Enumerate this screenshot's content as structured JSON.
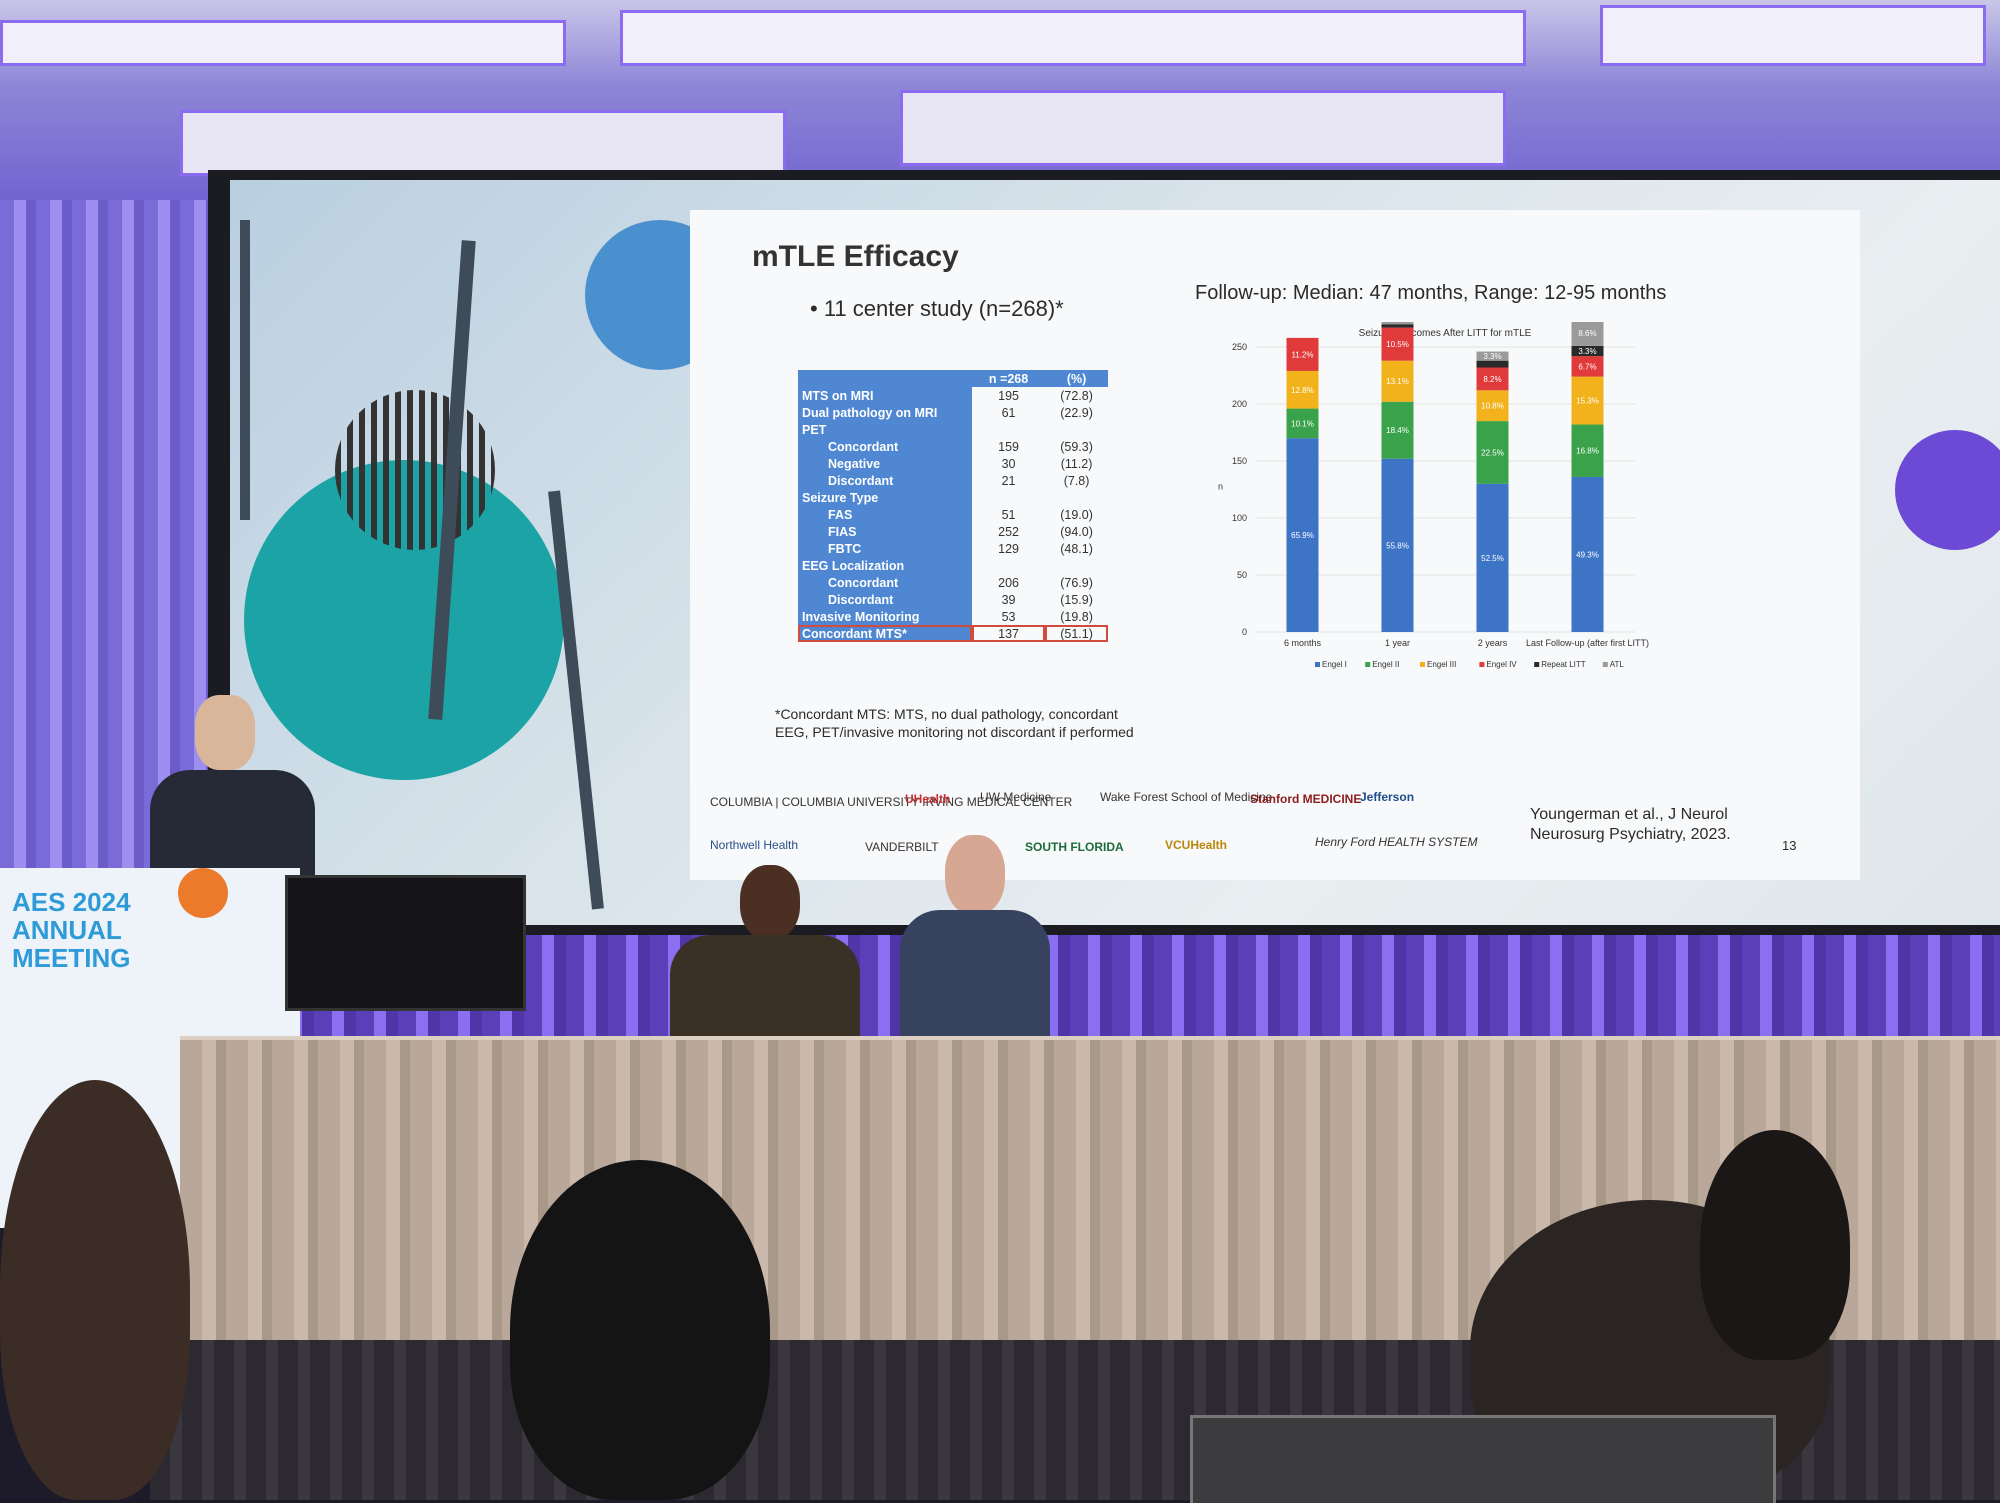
{
  "slide": {
    "title": "mTLE Efficacy",
    "bullet": "• 11 center study (n=268)*",
    "followup": "Follow-up: Median: 47 months, Range: 12-95 months",
    "table": {
      "header": [
        "",
        "n =268",
        "(%)"
      ],
      "rows": [
        {
          "label": "MTS on MRI",
          "n": "195",
          "pct": "(72.8)",
          "sub": false
        },
        {
          "label": "Dual pathology on MRI",
          "n": "61",
          "pct": "(22.9)",
          "sub": false
        },
        {
          "label": "PET",
          "n": "",
          "pct": "",
          "sub": false
        },
        {
          "label": "Concordant",
          "n": "159",
          "pct": "(59.3)",
          "sub": true
        },
        {
          "label": "Negative",
          "n": "30",
          "pct": "(11.2)",
          "sub": true
        },
        {
          "label": "Discordant",
          "n": "21",
          "pct": "(7.8)",
          "sub": true
        },
        {
          "label": "Seizure Type",
          "n": "",
          "pct": "",
          "sub": false
        },
        {
          "label": "FAS",
          "n": "51",
          "pct": "(19.0)",
          "sub": true
        },
        {
          "label": "FIAS",
          "n": "252",
          "pct": "(94.0)",
          "sub": true
        },
        {
          "label": "FBTC",
          "n": "129",
          "pct": "(48.1)",
          "sub": true
        },
        {
          "label": "EEG Localization",
          "n": "",
          "pct": "",
          "sub": false
        },
        {
          "label": "Concordant",
          "n": "206",
          "pct": "(76.9)",
          "sub": true
        },
        {
          "label": "Discordant",
          "n": "39",
          "pct": "(15.9)",
          "sub": true
        },
        {
          "label": "Invasive Monitoring",
          "n": "53",
          "pct": "(19.8)",
          "sub": false
        },
        {
          "label": "Concordant MTS*",
          "n": "137",
          "pct": "(51.1)",
          "sub": false,
          "highlight": true
        }
      ]
    },
    "footnote": "*Concordant MTS: MTS, no dual pathology, concordant EEG, PET/invasive monitoring not discordant if performed",
    "logos": [
      "COLUMBIA | COLUMBIA UNIVERSITY IRVING MEDICAL CENTER",
      "UHealth",
      "UW Medicine",
      "Wake Forest School of Medicine",
      "Stanford MEDICINE",
      "Jefferson",
      "Northwell Health",
      "VANDERBILT",
      "SOUTH FLORIDA",
      "VCUHealth",
      "Henry Ford HEALTH SYSTEM"
    ],
    "citation": "Youngerman et al., J Neurol Neurosurg Psychiatry, 2023.",
    "slide_number": "13"
  },
  "chart_data": {
    "type": "bar",
    "stacked": true,
    "title": "Seizure Outcomes After LITT for mTLE",
    "ylabel": "n",
    "ylim": [
      0,
      250
    ],
    "yticks": [
      0,
      50,
      100,
      150,
      200,
      250
    ],
    "categories": [
      "6 months",
      "1 year",
      "2 years",
      "Last Follow-up (after first LITT)"
    ],
    "series": [
      {
        "name": "Engel I",
        "color": "#3d74c6",
        "values": [
          170,
          152,
          130,
          136
        ],
        "labels": [
          "65.9%",
          "55.8%",
          "52.5%",
          "49.3%"
        ]
      },
      {
        "name": "Engel II",
        "color": "#3aa24a",
        "values": [
          26,
          50,
          55,
          46
        ],
        "labels": [
          "10.1%",
          "18.4%",
          "22.5%",
          "16.8%"
        ]
      },
      {
        "name": "Engel III",
        "color": "#f2b21c",
        "values": [
          33,
          36,
          27,
          42
        ],
        "labels": [
          "12.8%",
          "13.1%",
          "10.8%",
          "15.3%"
        ]
      },
      {
        "name": "Engel IV",
        "color": "#e03a3a",
        "values": [
          29,
          29,
          20,
          18
        ],
        "labels": [
          "11.2%",
          "10.5%",
          "8.2%",
          "6.7%"
        ]
      },
      {
        "name": "Repeat LITT",
        "color": "#2a2a2a",
        "values": [
          0,
          3,
          6,
          9
        ],
        "labels": [
          "",
          "",
          "",
          "3.3%"
        ]
      },
      {
        "name": "ATL",
        "color": "#9a9a9a",
        "values": [
          0,
          3,
          8,
          23
        ],
        "labels": [
          "",
          "",
          "3.3%",
          "8.6%"
        ]
      }
    ],
    "legend_position": "bottom"
  },
  "podium": {
    "line1": "AES 2024",
    "line2": "ANNUAL",
    "line3": "MEETING"
  },
  "colors": {
    "ceiling_light": "#8b6bf0",
    "table_header": "#4f87d2",
    "highlight": "#d24b3f"
  }
}
